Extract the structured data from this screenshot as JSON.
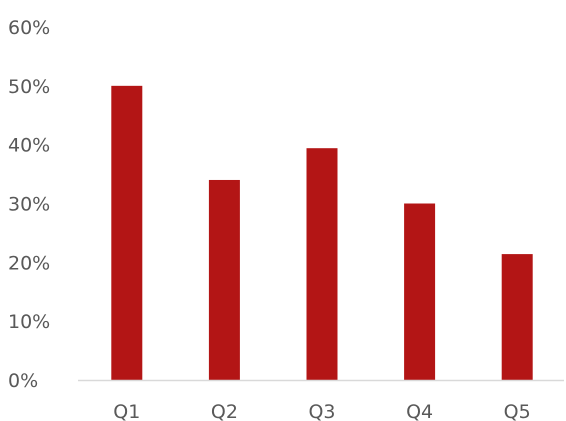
{
  "chart_data": {
    "type": "bar",
    "categories": [
      "Q1",
      "Q2",
      "Q3",
      "Q4",
      "Q5"
    ],
    "values": [
      50,
      34,
      39.4,
      30,
      21.4
    ],
    "ylim": [
      0,
      60
    ],
    "yticks": [
      0,
      10,
      20,
      30,
      40,
      50,
      60
    ],
    "ytick_labels": [
      "0%",
      "10%",
      "20%",
      "30%",
      "40%",
      "50%",
      "60%"
    ],
    "grid": false,
    "legend": "none",
    "colors": {
      "bar": "#B31515",
      "axis": "#D9D9D9",
      "text": "#595959"
    }
  }
}
